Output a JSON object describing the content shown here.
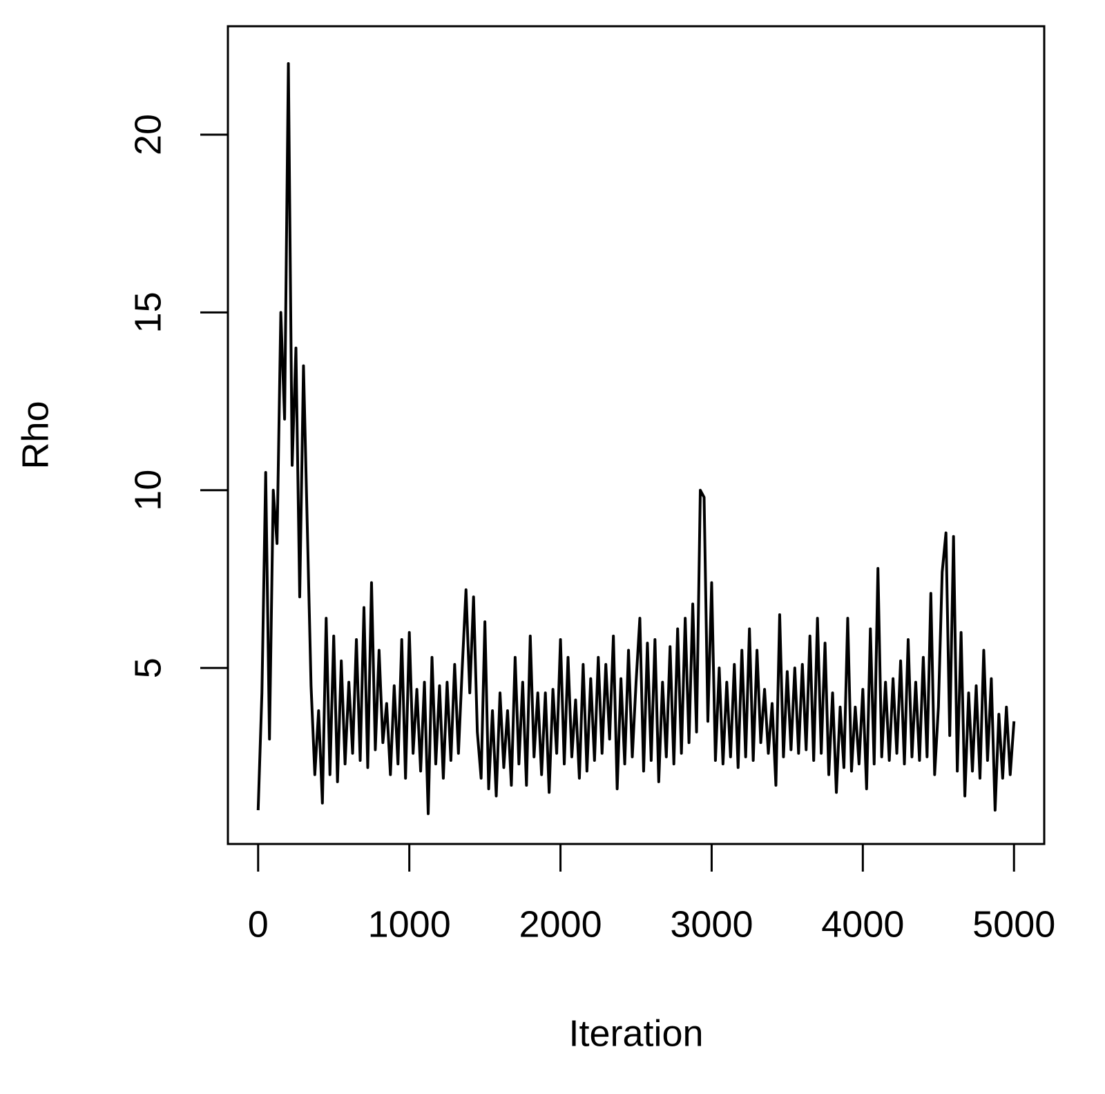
{
  "chart_data": {
    "type": "line",
    "x_label": "Iteration",
    "y_label": "Rho",
    "xlim": [
      -200,
      5200
    ],
    "ylim": [
      0.05,
      23.05
    ],
    "xticks": [
      0,
      1000,
      2000,
      3000,
      4000,
      5000
    ],
    "yticks": [
      5,
      10,
      15,
      20
    ],
    "color": "#000000",
    "x": [
      0,
      25,
      50,
      75,
      100,
      125,
      150,
      175,
      200,
      225,
      250,
      275,
      300,
      325,
      350,
      375,
      400,
      425,
      450,
      475,
      500,
      525,
      550,
      575,
      600,
      625,
      650,
      675,
      700,
      725,
      750,
      775,
      800,
      825,
      850,
      875,
      900,
      925,
      950,
      975,
      1000,
      1025,
      1050,
      1075,
      1100,
      1125,
      1150,
      1175,
      1200,
      1225,
      1250,
      1275,
      1300,
      1325,
      1350,
      1375,
      1400,
      1425,
      1450,
      1475,
      1500,
      1525,
      1550,
      1575,
      1600,
      1625,
      1650,
      1675,
      1700,
      1725,
      1750,
      1775,
      1800,
      1825,
      1850,
      1875,
      1900,
      1925,
      1950,
      1975,
      2000,
      2025,
      2050,
      2075,
      2100,
      2125,
      2150,
      2175,
      2200,
      2225,
      2250,
      2275,
      2300,
      2325,
      2350,
      2375,
      2400,
      2425,
      2450,
      2475,
      2500,
      2525,
      2550,
      2575,
      2600,
      2625,
      2650,
      2675,
      2700,
      2725,
      2750,
      2775,
      2800,
      2825,
      2850,
      2875,
      2900,
      2925,
      2950,
      2975,
      3000,
      3025,
      3050,
      3075,
      3100,
      3125,
      3150,
      3175,
      3200,
      3225,
      3250,
      3275,
      3300,
      3325,
      3350,
      3375,
      3400,
      3425,
      3450,
      3475,
      3500,
      3525,
      3550,
      3575,
      3600,
      3625,
      3650,
      3675,
      3700,
      3725,
      3750,
      3775,
      3800,
      3825,
      3850,
      3875,
      3900,
      3925,
      3950,
      3975,
      4000,
      4025,
      4050,
      4075,
      4100,
      4125,
      4150,
      4175,
      4200,
      4225,
      4250,
      4275,
      4300,
      4325,
      4350,
      4375,
      4400,
      4425,
      4450,
      4475,
      4500,
      4525,
      4550,
      4575,
      4600,
      4625,
      4650,
      4675,
      4700,
      4725,
      4750,
      4775,
      4800,
      4825,
      4850,
      4875,
      4900,
      4925,
      4950,
      4975,
      5000
    ],
    "values": [
      1.0,
      4.3,
      10.5,
      3.0,
      10.0,
      8.5,
      15.0,
      12.0,
      22.0,
      10.7,
      14.0,
      7.0,
      13.5,
      9.0,
      4.5,
      2.0,
      3.8,
      1.2,
      6.4,
      2.0,
      5.9,
      1.8,
      5.2,
      2.3,
      4.6,
      2.6,
      5.8,
      2.4,
      6.7,
      2.2,
      7.4,
      2.7,
      5.5,
      2.9,
      4.0,
      2.0,
      4.5,
      2.3,
      5.8,
      1.9,
      6.0,
      2.6,
      4.4,
      2.1,
      4.6,
      0.9,
      5.3,
      2.3,
      4.5,
      1.9,
      4.6,
      2.4,
      5.1,
      2.6,
      5.0,
      7.2,
      4.3,
      7.0,
      3.2,
      1.9,
      6.3,
      1.6,
      3.8,
      1.4,
      4.3,
      2.2,
      3.8,
      1.7,
      5.3,
      2.3,
      4.6,
      1.7,
      5.9,
      2.5,
      4.3,
      2.0,
      4.3,
      1.5,
      4.4,
      2.6,
      5.8,
      2.3,
      5.3,
      2.5,
      4.1,
      1.9,
      5.1,
      2.1,
      4.7,
      2.4,
      5.3,
      2.6,
      5.1,
      3.0,
      5.9,
      1.6,
      4.7,
      2.3,
      5.5,
      2.5,
      4.6,
      6.4,
      2.1,
      5.7,
      2.4,
      5.8,
      1.8,
      4.6,
      2.5,
      5.6,
      2.3,
      6.1,
      2.6,
      6.4,
      2.9,
      6.8,
      3.2,
      10.0,
      9.8,
      3.5,
      7.4,
      2.4,
      5.0,
      2.3,
      4.6,
      2.5,
      5.1,
      2.2,
      5.5,
      2.5,
      6.1,
      2.4,
      5.5,
      2.9,
      4.4,
      2.6,
      4.0,
      1.7,
      6.5,
      2.5,
      4.9,
      2.7,
      5.0,
      2.6,
      5.1,
      2.7,
      5.9,
      2.4,
      6.4,
      2.6,
      5.7,
      2.0,
      4.3,
      1.5,
      3.9,
      2.2,
      6.4,
      2.1,
      3.9,
      2.3,
      4.4,
      1.6,
      6.1,
      2.3,
      7.8,
      2.5,
      4.6,
      2.4,
      4.7,
      2.6,
      5.2,
      2.3,
      5.8,
      2.5,
      4.6,
      2.4,
      5.3,
      2.5,
      7.1,
      2.0,
      3.9,
      7.7,
      8.8,
      3.1,
      8.7,
      2.1,
      6.0,
      1.4,
      4.3,
      2.1,
      4.5,
      1.9,
      5.5,
      2.4,
      4.7,
      1.0,
      3.7,
      1.9,
      3.9,
      2.0,
      3.5
    ]
  }
}
